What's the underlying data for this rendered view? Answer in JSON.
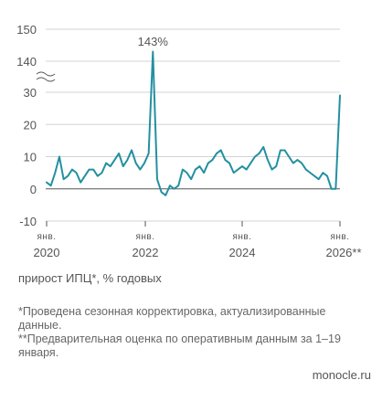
{
  "chart_data": {
    "type": "line",
    "title": "",
    "xlabel": "",
    "ylabel": "",
    "yticks": [
      "150",
      "140",
      "30",
      "20",
      "10",
      "0",
      "-10"
    ],
    "ylim": [
      -10,
      150
    ],
    "y_axis_break": [
      30,
      140
    ],
    "grid": true,
    "x_ticks": [
      {
        "month": "янв.",
        "year": "2020",
        "x": "2020-01"
      },
      {
        "month": "янв.",
        "year": "2022",
        "x": "2022-01"
      },
      {
        "month": "янв.",
        "year": "2024",
        "x": "2024-01"
      },
      {
        "month": "янв.",
        "year": "2026**",
        "x": "2026-01"
      }
    ],
    "peak_label": "143%",
    "series": [
      {
        "color": "#2390a0",
        "values": [
          2,
          1,
          5,
          10,
          3,
          4,
          6,
          5,
          2,
          4,
          6,
          6,
          4,
          5,
          8,
          7,
          9,
          11,
          7,
          9,
          12,
          8,
          6,
          8,
          11,
          143,
          3,
          -1,
          -2,
          1,
          0,
          1,
          6,
          5,
          3,
          6,
          7,
          5,
          8,
          9,
          11,
          12,
          9,
          8,
          5,
          6,
          7,
          6,
          8,
          10,
          11,
          13,
          9,
          6,
          7,
          12,
          12,
          10,
          8,
          9,
          8,
          6,
          5,
          4,
          3,
          5,
          4,
          0,
          0,
          29
        ]
      }
    ]
  },
  "caption": "прирост ИПЦ*, % годовых",
  "notes": [
    "*Проведена сезонная корректировка, актуализированные данные.",
    "**Предварительная оценка по оперативным данным за 1–19 января."
  ],
  "source": "monocle.ru"
}
